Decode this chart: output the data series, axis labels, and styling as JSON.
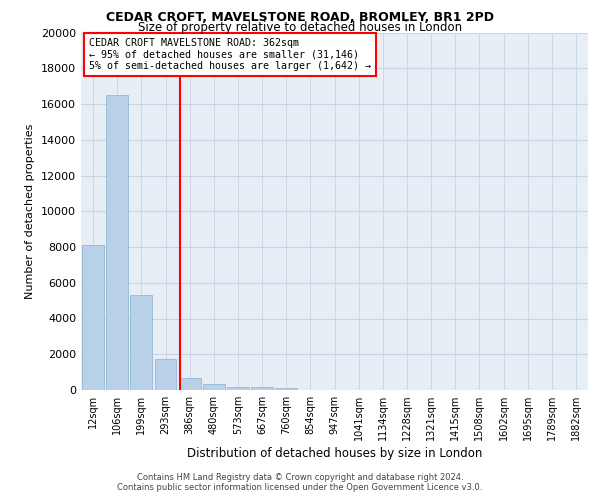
{
  "title1": "CEDAR CROFT, MAVELSTONE ROAD, BROMLEY, BR1 2PD",
  "title2": "Size of property relative to detached houses in London",
  "xlabel": "Distribution of detached houses by size in London",
  "ylabel": "Number of detached properties",
  "bar_values": [
    8100,
    16500,
    5300,
    1750,
    650,
    350,
    175,
    150,
    130,
    0,
    0,
    0,
    0,
    0,
    0,
    0,
    0,
    0,
    0,
    0,
    0
  ],
  "bar_labels": [
    "12sqm",
    "106sqm",
    "199sqm",
    "293sqm",
    "386sqm",
    "480sqm",
    "573sqm",
    "667sqm",
    "760sqm",
    "854sqm",
    "947sqm",
    "1041sqm",
    "1134sqm",
    "1228sqm",
    "1321sqm",
    "1415sqm",
    "1508sqm",
    "1602sqm",
    "1695sqm",
    "1789sqm",
    "1882sqm"
  ],
  "bar_color": "#b8d0e8",
  "bar_edge_color": "#8ab0d0",
  "grid_color": "#c8d4e4",
  "background_color": "#e8eef6",
  "vline_x": 3.62,
  "vline_color": "red",
  "annotation_title": "CEDAR CROFT MAVELSTONE ROAD: 362sqm",
  "annotation_line1": "← 95% of detached houses are smaller (31,146)",
  "annotation_line2": "5% of semi-detached houses are larger (1,642) →",
  "annotation_box_color": "white",
  "annotation_box_edge": "red",
  "ylim": [
    0,
    20000
  ],
  "yticks": [
    0,
    2000,
    4000,
    6000,
    8000,
    10000,
    12000,
    14000,
    16000,
    18000,
    20000
  ],
  "footer1": "Contains HM Land Registry data © Crown copyright and database right 2024.",
  "footer2": "Contains public sector information licensed under the Open Government Licence v3.0."
}
